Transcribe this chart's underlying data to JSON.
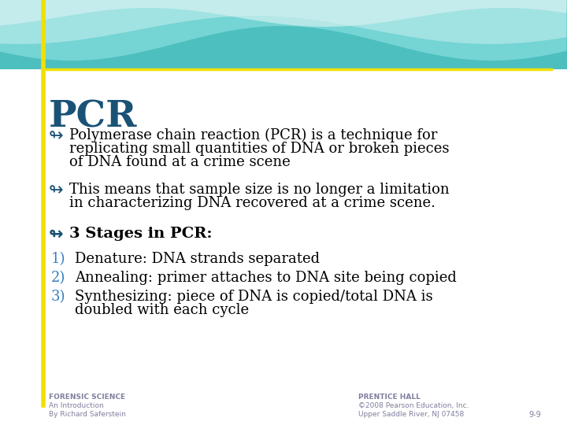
{
  "title": "PCR",
  "title_color": "#1a5276",
  "bg_color": "#ffffff",
  "yellow_line_color": "#f0e000",
  "bullet_color": "#1a5276",
  "text_color": "#000000",
  "footer_color": "#7f7f9f",
  "num_color": "#3a7fbf",
  "bullet1_line1": "Polymerase chain reaction (PCR) is a technique for",
  "bullet1_line2": "replicating small quantities of DNA or broken pieces",
  "bullet1_line3": "of DNA found at a crime scene",
  "bullet2_line1": "This means that sample size is no longer a limitation",
  "bullet2_line2": "in characterizing DNA recovered at a crime scene.",
  "bullet3": "3 Stages in PCR:",
  "num1": "Denature: DNA strands separated",
  "num2": "Annealing: primer attaches to DNA site being copied",
  "num3_line1": "Synthesizing: piece of DNA is copied/total DNA is",
  "num3_line2": "doubled with each cycle",
  "footer_left1": "FORENSIC SCIENCE",
  "footer_left2": "An Introduction",
  "footer_left3": "By Richard Saferstein",
  "footer_right1": "PRENTICE HALL",
  "footer_right2": "©2008 Pearson Education, Inc.",
  "footer_right3": "Upper Saddle River, NJ 07458",
  "page_num": "9-9"
}
